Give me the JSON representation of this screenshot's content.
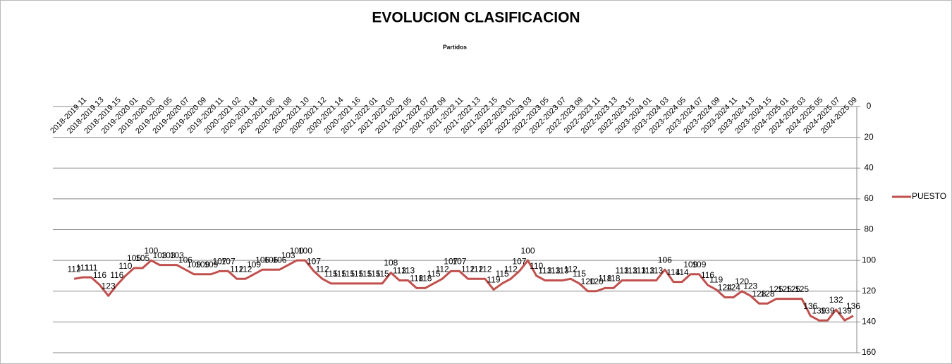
{
  "chart_data": {
    "type": "line",
    "title": "EVOLUCION CLASIFICACION",
    "x_label": "Partidos",
    "categories": [
      "2018-2019 11",
      null,
      "2018-2019 13",
      null,
      "2018-2019 15",
      null,
      "2019-2020 01",
      null,
      "2019-2020 03",
      null,
      "2019-2020 05",
      null,
      "2019-2020 07",
      null,
      "2019-2020 09",
      null,
      "2019-2020 11",
      null,
      "2020-2021 02",
      null,
      "2020-2021 04",
      null,
      "2020-2021 06",
      null,
      "2020-2021 08",
      null,
      "2020-2021 10",
      null,
      "2020-2021 12",
      null,
      "2020-2021 14",
      null,
      "2020-2021 16",
      null,
      "2021-2022 01",
      null,
      "2021-2022 03",
      null,
      "2021-2022 05",
      null,
      "2021-2022 07",
      null,
      "2021-2022 09",
      null,
      "2021-2022 11",
      null,
      "2021-2022 13",
      null,
      "2021-2022 15",
      null,
      "2022-2023 01",
      null,
      "2022-2023 03",
      null,
      "2022-2023 05",
      null,
      "2022-2023 07",
      null,
      "2022-2023 09",
      null,
      "2022-2023 11",
      null,
      "2022-2023 13",
      null,
      "2022-2023 15",
      null,
      "2023-2024 01",
      null,
      "2023-2024 03",
      null,
      "2023-2024 05",
      null,
      "2023-2024 07",
      null,
      "2023-2024 09",
      null,
      "2023-2024 11",
      null,
      "2023-2024 13",
      null,
      "2023-2024 15",
      null,
      "2024-2025 01",
      null,
      "2024-2025 03",
      null,
      "2024-2025 05",
      null,
      "2024-2025 07",
      null,
      "2024-2025 09",
      null
    ],
    "series": [
      {
        "name": "PUESTO",
        "color": "#c0504d",
        "values": [
          112,
          111,
          111,
          116,
          123,
          116,
          110,
          105,
          105,
          100,
          103,
          103,
          103,
          106,
          109,
          109,
          109,
          107,
          107,
          112,
          112,
          109,
          106,
          106,
          106,
          103,
          100,
          100,
          107,
          112,
          115,
          115,
          115,
          115,
          115,
          115,
          115,
          108,
          113,
          113,
          118,
          118,
          115,
          112,
          107,
          107,
          112,
          112,
          112,
          119,
          115,
          112,
          107,
          100,
          110,
          113,
          113,
          113,
          112,
          115,
          120,
          120,
          118,
          118,
          113,
          113,
          113,
          113,
          113,
          106,
          114,
          114,
          109,
          109,
          116,
          119,
          124,
          124,
          120,
          123,
          128,
          128,
          125,
          125,
          125,
          125,
          136,
          139,
          139,
          132,
          139,
          136
        ]
      }
    ],
    "ylim": [
      0,
      160
    ],
    "y_inverted": true,
    "yticks": [
      0,
      20,
      40,
      60,
      80,
      100,
      120,
      140,
      160
    ],
    "grid": true,
    "legend": "right"
  }
}
